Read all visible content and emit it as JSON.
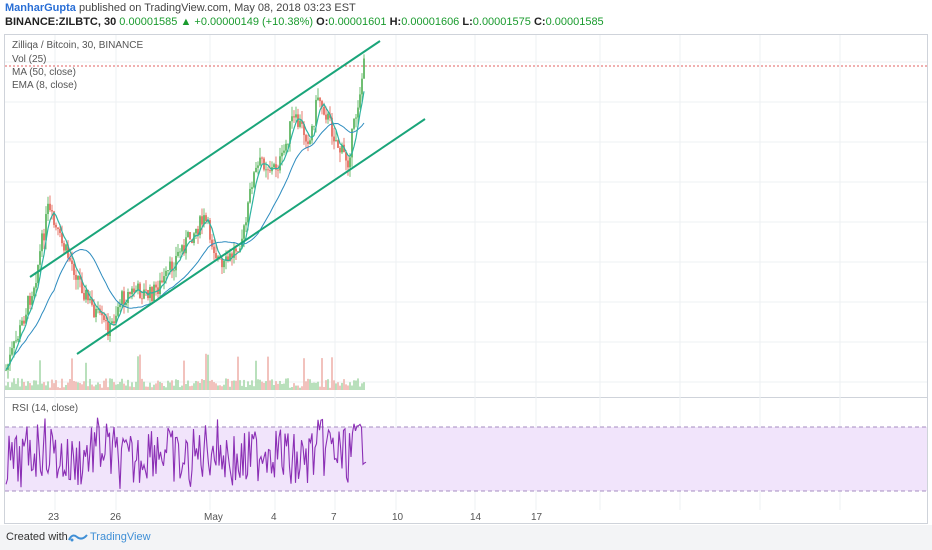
{
  "header": {
    "author": "ManharGupta",
    "published": "published on TradingView.com, May 08, 2018 03:23 EST",
    "symbol": "BINANCE:ZILBTC, 30",
    "last": "0.00001585",
    "change": "▲ +0.00000149 (+10.38%)",
    "o_label": "O:",
    "o": "0.00001601",
    "h_label": "H:",
    "h": "0.00001606",
    "l_label": "L:",
    "l": "0.00001575",
    "c_label": "C:",
    "c": "0.00001585"
  },
  "legend": {
    "title": "Zilliqa / Bitcoin, 30, BINANCE",
    "vol": "Vol (25)",
    "ma": "MA (50, close)",
    "ema": "EMA (8, close)",
    "rsi": "RSI (14, close)"
  },
  "xaxis": {
    "labels": [
      "23",
      "26",
      "May",
      "4",
      "7",
      "10",
      "14",
      "17"
    ]
  },
  "footer": {
    "created": "Created with",
    "brand": "TradingView"
  },
  "colors": {
    "channel": "#1aa57a",
    "candle_up": "#4caf50",
    "candle_down": "#e25b4c",
    "ma": "#2d8cbf",
    "ema": "#2db3a0",
    "rsi": "#8b2fb5",
    "rsi_band": "#f1e4fb",
    "price_line": "#e06060"
  }
}
